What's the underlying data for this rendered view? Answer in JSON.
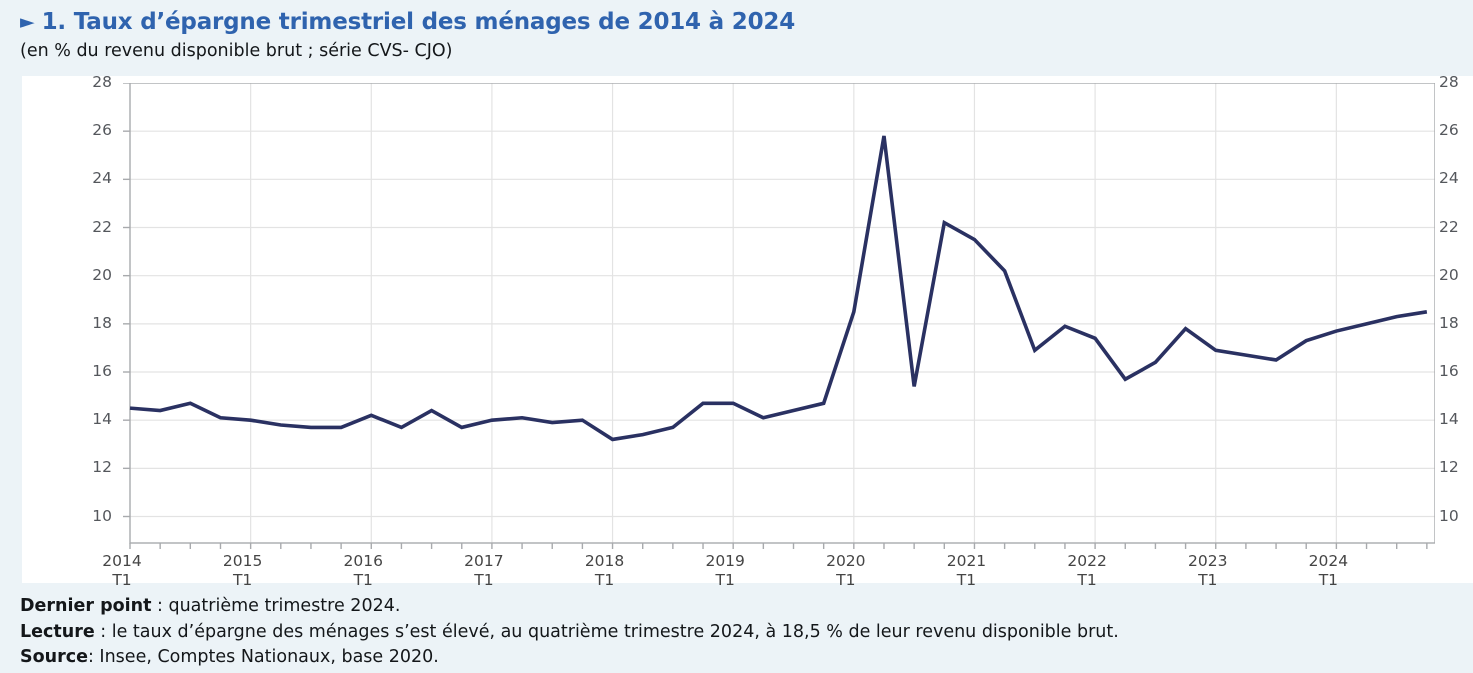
{
  "page": {
    "background": "#ecf3f7",
    "title_arrow": "►",
    "title": "1. Taux d’épargne trimestriel des ménages de 2014 à 2024",
    "subtitle": "(en % du revenu disponible brut ; série CVS- CJO)",
    "accent_color": "#2f63ae"
  },
  "chart_data": {
    "type": "line",
    "title": "Taux d’épargne trimestriel des ménages de 2014 à 2024",
    "ylabel": "en % du revenu disponible brut",
    "series_name": "Taux d’épargne des ménages (CVS-CJO)",
    "x": [
      "2014-T1",
      "2014-T2",
      "2014-T3",
      "2014-T4",
      "2015-T1",
      "2015-T2",
      "2015-T3",
      "2015-T4",
      "2016-T1",
      "2016-T2",
      "2016-T3",
      "2016-T4",
      "2017-T1",
      "2017-T2",
      "2017-T3",
      "2017-T4",
      "2018-T1",
      "2018-T2",
      "2018-T3",
      "2018-T4",
      "2019-T1",
      "2019-T2",
      "2019-T3",
      "2019-T4",
      "2020-T1",
      "2020-T2",
      "2020-T3",
      "2020-T4",
      "2021-T1",
      "2021-T2",
      "2021-T3",
      "2021-T4",
      "2022-T1",
      "2022-T2",
      "2022-T3",
      "2022-T4",
      "2023-T1",
      "2023-T2",
      "2023-T3",
      "2023-T4",
      "2024-T1",
      "2024-T2",
      "2024-T3",
      "2024-T4"
    ],
    "values": [
      14.5,
      14.4,
      14.7,
      14.1,
      14.0,
      13.8,
      13.7,
      13.7,
      14.2,
      13.7,
      14.4,
      13.7,
      14.0,
      14.1,
      13.9,
      14.0,
      13.2,
      13.4,
      13.7,
      14.7,
      14.7,
      14.1,
      14.4,
      14.7,
      18.5,
      25.8,
      15.4,
      22.2,
      21.5,
      20.2,
      16.9,
      17.9,
      17.4,
      15.7,
      16.4,
      17.8,
      16.9,
      16.7,
      16.5,
      17.3,
      17.7,
      18.0,
      18.3,
      18.5
    ],
    "ylim": [
      8.9,
      28
    ],
    "yticks": [
      28,
      26,
      24,
      22,
      20,
      18,
      16,
      14,
      12,
      10
    ],
    "x_year_labels": [
      "2014",
      "2015",
      "2016",
      "2017",
      "2018",
      "2019",
      "2020",
      "2021",
      "2022",
      "2023",
      "2024"
    ],
    "x_sublabel": "T1",
    "grid": true,
    "legend": "none",
    "line_color": "#2a3162",
    "grid_color": "#e3e3e3",
    "axis_color": "#a8aaad",
    "tick_label_color": "#54575c"
  },
  "footer": {
    "lines": [
      {
        "label": "Dernier point",
        "sep": " : ",
        "text": "quatrième trimestre 2024."
      },
      {
        "label": "Lecture",
        "sep": " : ",
        "text": "le taux d’épargne des ménages s’est élevé, au quatrième trimestre 2024, à 18,5 % de leur revenu disponible brut."
      },
      {
        "label": "Source",
        "sep": ": ",
        "text": "Insee, Comptes Nationaux, base 2020."
      }
    ]
  }
}
